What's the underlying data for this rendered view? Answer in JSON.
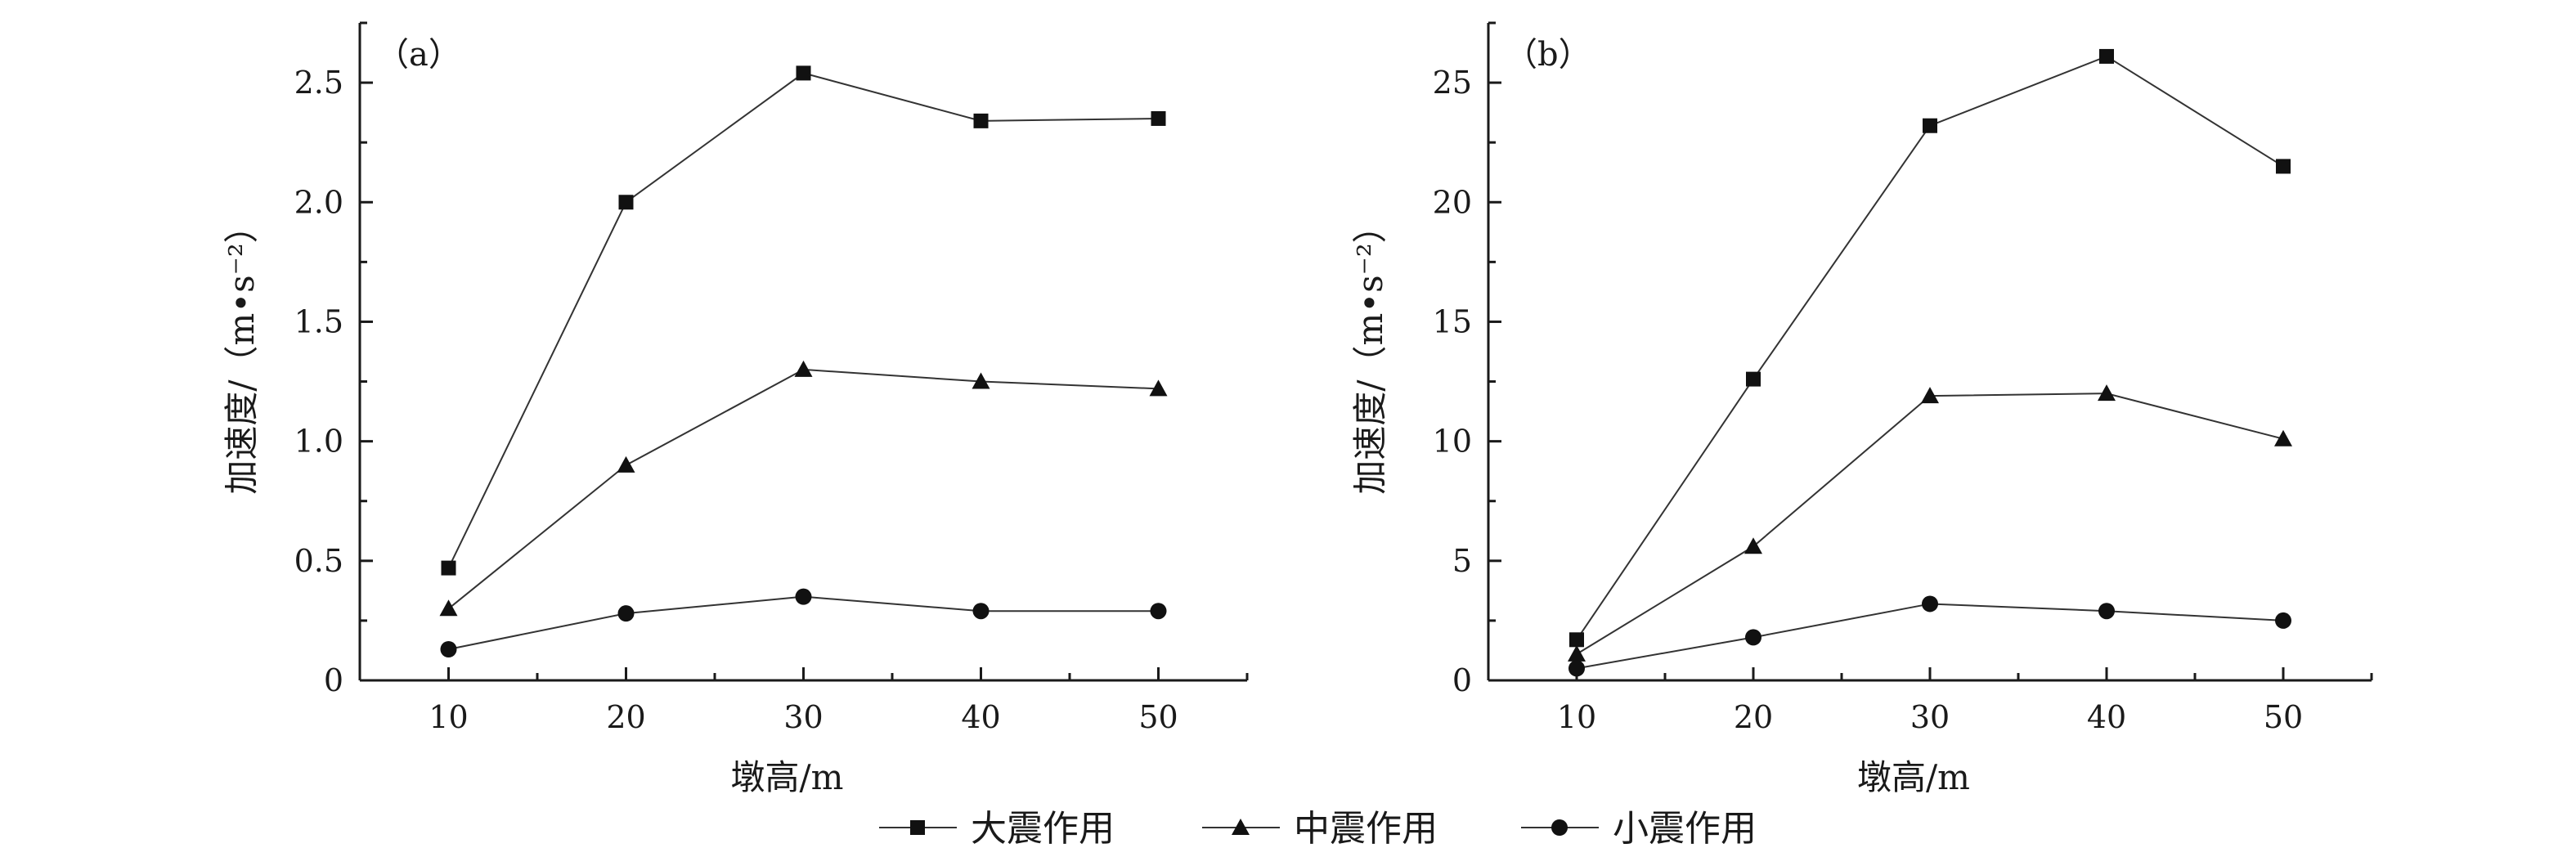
{
  "chart_data": [
    {
      "type": "line",
      "panel_label": "（a）",
      "xlabel": "墩高/m",
      "ylabel": "加速度/（m•s⁻²）",
      "x": [
        10,
        20,
        30,
        40,
        50
      ],
      "xticks": [
        10,
        20,
        30,
        40,
        50
      ],
      "xlim": [
        5,
        55
      ],
      "ylim": [
        0,
        2.75
      ],
      "yticks": [
        0,
        0.5,
        1.0,
        1.5,
        2.0,
        2.5
      ],
      "ytick_labels": [
        "0",
        "0.5",
        "1.0",
        "1.5",
        "2.0",
        "2.5"
      ],
      "series": [
        {
          "name": "大震作用",
          "marker": "square",
          "values": [
            0.47,
            2.0,
            2.54,
            2.34,
            2.35
          ]
        },
        {
          "name": "中震作用",
          "marker": "triangle",
          "values": [
            0.3,
            0.9,
            1.3,
            1.25,
            1.22
          ]
        },
        {
          "name": "小震作用",
          "marker": "circle",
          "values": [
            0.13,
            0.28,
            0.35,
            0.29,
            0.29
          ]
        }
      ]
    },
    {
      "type": "line",
      "panel_label": "（b）",
      "xlabel": "墩高/m",
      "ylabel": "加速度/（m•s⁻²）",
      "x": [
        10,
        20,
        30,
        40,
        50
      ],
      "xticks": [
        10,
        20,
        30,
        40,
        50
      ],
      "xlim": [
        5,
        55
      ],
      "ylim": [
        0,
        27.5
      ],
      "yticks": [
        0,
        5,
        10,
        15,
        20,
        25
      ],
      "ytick_labels": [
        "0",
        "5",
        "10",
        "15",
        "20",
        "25"
      ],
      "series": [
        {
          "name": "大震作用",
          "marker": "square",
          "values": [
            1.7,
            12.6,
            23.2,
            26.1,
            21.5
          ]
        },
        {
          "name": "中震作用",
          "marker": "triangle",
          "values": [
            1.1,
            5.6,
            11.9,
            12.0,
            10.1
          ]
        },
        {
          "name": "小震作用",
          "marker": "circle",
          "values": [
            0.5,
            1.8,
            3.2,
            2.9,
            2.5
          ]
        }
      ]
    }
  ],
  "legend": {
    "placement": "bottom-center",
    "items": [
      {
        "label": "大震作用",
        "marker": "square"
      },
      {
        "label": "中震作用",
        "marker": "triangle"
      },
      {
        "label": "小震作用",
        "marker": "circle"
      }
    ]
  }
}
